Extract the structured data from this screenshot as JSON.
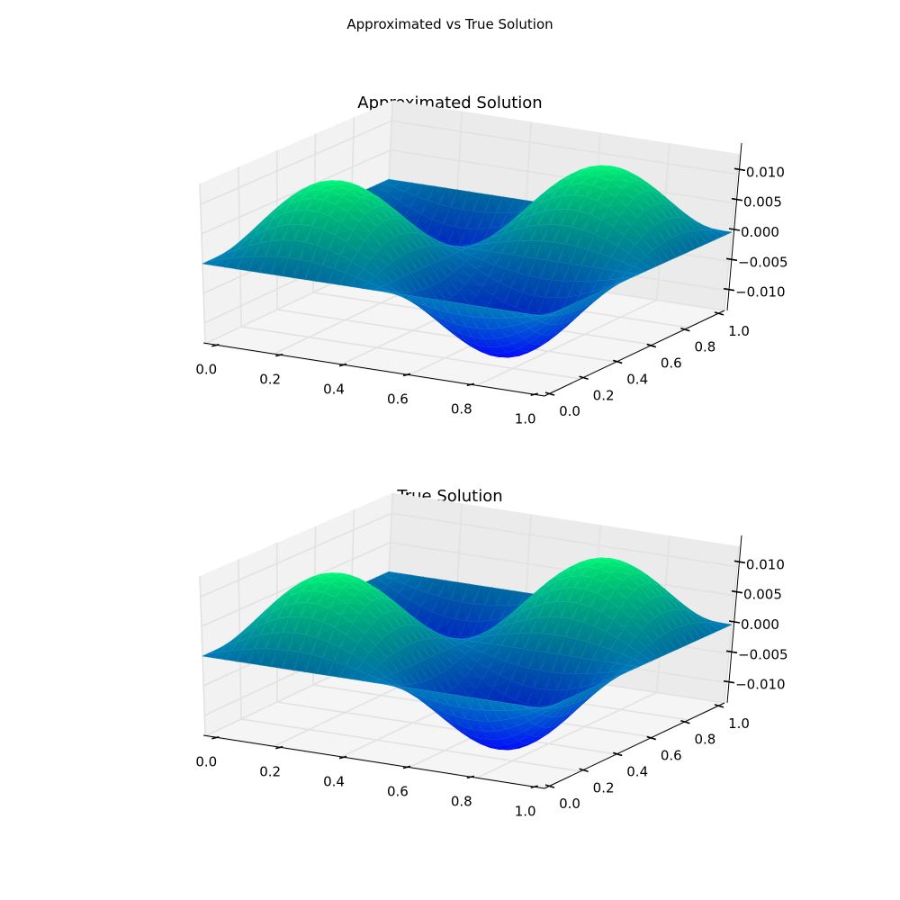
{
  "figure": {
    "suptitle": "Approximated vs True Solution"
  },
  "chart_data": [
    {
      "type": "surface3d",
      "title": "Approximated Solution",
      "colormap": "winter",
      "colormap_colors": [
        "#0000ff",
        "#00ff80"
      ],
      "function_estimate": "z = 0.0125 * sin(2*pi*x) * sin(2*pi*y) (approximate shape read from surface)",
      "xlabel": "",
      "ylabel": "",
      "zlabel": "",
      "x_ticks": [
        "0.0",
        "0.2",
        "0.4",
        "0.6",
        "0.8",
        "1.0"
      ],
      "y_ticks": [
        "0.0",
        "0.2",
        "0.4",
        "0.6",
        "0.8",
        "1.0"
      ],
      "z_ticks": [
        "0.010",
        "0.005",
        "0.000",
        "−0.005",
        "−0.010"
      ],
      "xlim": [
        0,
        1
      ],
      "ylim": [
        0,
        1
      ],
      "zlim": [
        -0.0135,
        0.0135
      ],
      "amplitude": 0.0125,
      "grid": true,
      "mesh": "triangulated"
    },
    {
      "type": "surface3d",
      "title": "True Solution",
      "colormap": "winter",
      "colormap_colors": [
        "#0000ff",
        "#00ff80"
      ],
      "function_estimate": "z = 0.0125 * sin(2*pi*x) * sin(2*pi*y) (approximate shape read from surface)",
      "xlabel": "",
      "ylabel": "",
      "zlabel": "",
      "x_ticks": [
        "0.0",
        "0.2",
        "0.4",
        "0.6",
        "0.8",
        "1.0"
      ],
      "y_ticks": [
        "0.0",
        "0.2",
        "0.4",
        "0.6",
        "0.8",
        "1.0"
      ],
      "z_ticks": [
        "0.010",
        "0.005",
        "0.000",
        "−0.005",
        "−0.010"
      ],
      "xlim": [
        0,
        1
      ],
      "ylim": [
        0,
        1
      ],
      "zlim": [
        -0.0135,
        0.0135
      ],
      "amplitude": 0.0125,
      "grid": true,
      "mesh": "triangulated"
    }
  ],
  "plots": {
    "top": {
      "title": "Approximated Solution"
    },
    "bottom": {
      "title": "True Solution"
    }
  }
}
